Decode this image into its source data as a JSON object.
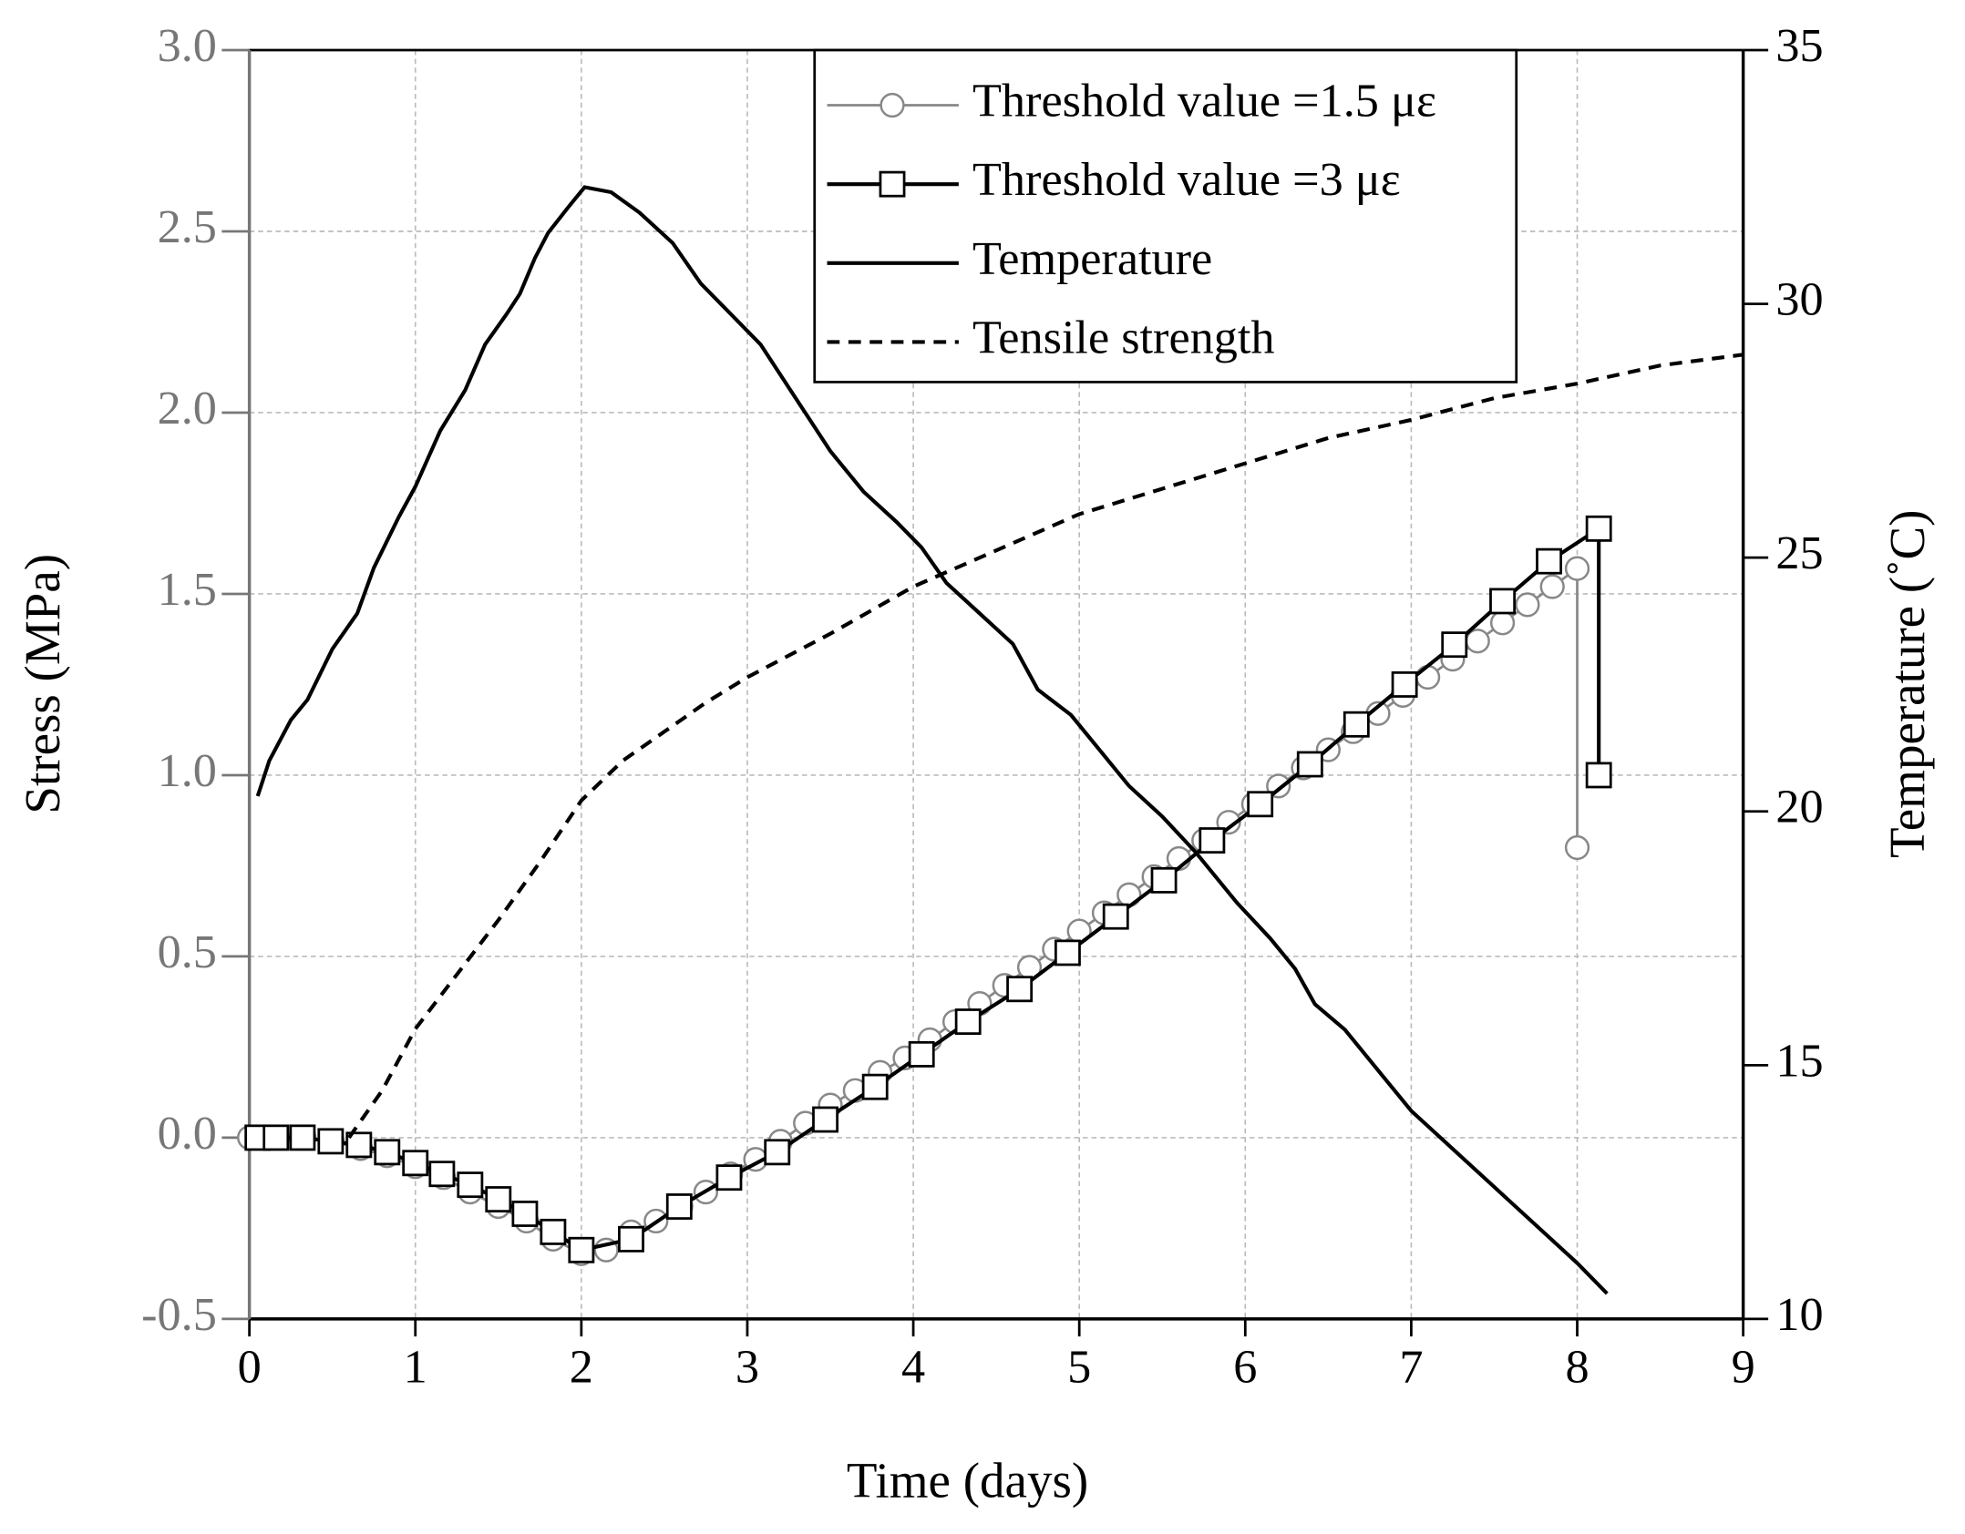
{
  "chart_data": {
    "type": "line",
    "xlabel": "Time (days)",
    "ylabel": "Stress (MPa)",
    "y2label": "Temperature (˚C)",
    "xlim": [
      0,
      9
    ],
    "xticks": [
      0,
      1,
      2,
      3,
      4,
      5,
      6,
      7,
      8,
      9
    ],
    "ylim": [
      -0.5,
      3.0
    ],
    "yticks": [
      -0.5,
      {
        "value": 0,
        "label": "0.0"
      },
      0.5,
      {
        "value": 1,
        "label": "1.0"
      },
      1.5,
      {
        "value": 2,
        "label": "2.0"
      },
      2.5,
      {
        "value": 3,
        "label": "3.0"
      }
    ],
    "y2lim": [
      10,
      35
    ],
    "y2ticks": [
      10,
      15,
      20,
      25,
      30,
      35
    ],
    "grid": true,
    "legend": "upper center",
    "left_axis_color": "#777777",
    "series": [
      {
        "name": "Threshold value =1.5 με",
        "color": "#888888",
        "marker": "circle",
        "dashed": false,
        "x": [
          0,
          0.17,
          0.33,
          0.5,
          0.67,
          0.83,
          1.0,
          1.17,
          1.33,
          1.5,
          1.67,
          1.83,
          2.0,
          2.15,
          2.3,
          2.45,
          2.6,
          2.75,
          2.9,
          3.05,
          3.2,
          3.35,
          3.5,
          3.65,
          3.8,
          3.95,
          4.1,
          4.25,
          4.4,
          4.55,
          4.7,
          4.85,
          5.0,
          5.15,
          5.3,
          5.45,
          5.6,
          5.75,
          5.9,
          6.05,
          6.2,
          6.35,
          6.5,
          6.65,
          6.8,
          6.95,
          7.1,
          7.25,
          7.4,
          7.55,
          7.7,
          7.85,
          8.0,
          8.0
        ],
        "values": [
          0,
          0,
          0,
          -0.01,
          -0.03,
          -0.05,
          -0.08,
          -0.11,
          -0.15,
          -0.19,
          -0.23,
          -0.28,
          -0.32,
          -0.31,
          -0.26,
          -0.23,
          -0.19,
          -0.15,
          -0.1,
          -0.06,
          -0.01,
          0.04,
          0.09,
          0.13,
          0.18,
          0.22,
          0.27,
          0.32,
          0.37,
          0.42,
          0.47,
          0.52,
          0.57,
          0.62,
          0.67,
          0.72,
          0.77,
          0.82,
          0.87,
          0.92,
          0.97,
          1.02,
          1.07,
          1.12,
          1.17,
          1.22,
          1.27,
          1.32,
          1.37,
          1.42,
          1.47,
          1.52,
          1.57,
          0.8
        ]
      },
      {
        "name": "Threshold value =3 με",
        "color": "#000000",
        "marker": "square",
        "dashed": false,
        "x": [
          0.05,
          0.16,
          0.32,
          0.49,
          0.66,
          0.83,
          1.0,
          1.16,
          1.33,
          1.5,
          1.66,
          1.83,
          2.0,
          2.3,
          2.59,
          2.89,
          3.18,
          3.47,
          3.77,
          4.05,
          4.33,
          4.64,
          4.93,
          5.22,
          5.51,
          5.8,
          6.09,
          6.39,
          6.67,
          6.96,
          7.26,
          7.55,
          7.83,
          8.13,
          8.13
        ],
        "values": [
          0,
          0,
          0,
          -0.01,
          -0.02,
          -0.04,
          -0.07,
          -0.1,
          -0.13,
          -0.17,
          -0.21,
          -0.26,
          -0.31,
          -0.28,
          -0.19,
          -0.11,
          -0.04,
          0.05,
          0.14,
          0.23,
          0.32,
          0.41,
          0.51,
          0.61,
          0.71,
          0.82,
          0.92,
          1.03,
          1.14,
          1.25,
          1.36,
          1.48,
          1.59,
          1.68,
          1.0
        ]
      },
      {
        "name": "Temperature",
        "color": "#000000",
        "marker": "none",
        "dashed": false,
        "axis": "y2",
        "x": [
          0.05,
          0.12,
          0.25,
          0.35,
          0.5,
          0.65,
          0.75,
          0.9,
          1.0,
          1.15,
          1.3,
          1.42,
          1.55,
          1.63,
          1.72,
          1.8,
          1.92,
          2.02,
          2.18,
          2.35,
          2.55,
          2.72,
          2.9,
          3.08,
          3.3,
          3.5,
          3.7,
          3.9,
          4.05,
          4.2,
          4.4,
          4.6,
          4.75,
          4.95,
          5.1,
          5.3,
          5.5,
          5.7,
          5.95,
          6.15,
          6.3,
          6.42,
          6.6,
          6.8,
          7.0,
          7.5,
          8.0,
          8.18
        ],
        "values": [
          20.3,
          21,
          21.8,
          22.2,
          23.2,
          23.9,
          24.8,
          25.8,
          26.4,
          27.5,
          28.3,
          29.2,
          29.8,
          30.2,
          30.9,
          31.4,
          31.9,
          32.3,
          32.2,
          31.8,
          31.2,
          30.4,
          29.8,
          29.2,
          28.1,
          27.1,
          26.3,
          25.7,
          25.2,
          24.5,
          23.9,
          23.3,
          22.4,
          21.9,
          21.3,
          20.5,
          19.9,
          19.2,
          18.2,
          17.5,
          16.9,
          16.2,
          15.7,
          14.9,
          14.1,
          12.6,
          11.1,
          10.5
        ]
      },
      {
        "name": "Tensile strength",
        "color": "#000000",
        "marker": "none",
        "dashed": true,
        "x": [
          0.6,
          0.8,
          1.0,
          1.25,
          1.5,
          1.75,
          2.0,
          2.25,
          2.5,
          2.75,
          3.0,
          3.5,
          4.0,
          4.5,
          5.0,
          5.5,
          6.0,
          6.5,
          7.0,
          7.5,
          8.0,
          8.5,
          9.0
        ],
        "values": [
          0,
          0.13,
          0.3,
          0.45,
          0.6,
          0.76,
          0.93,
          1.04,
          1.12,
          1.2,
          1.27,
          1.39,
          1.52,
          1.62,
          1.72,
          1.79,
          1.86,
          1.93,
          1.98,
          2.04,
          2.08,
          2.13,
          2.16
        ]
      }
    ]
  }
}
